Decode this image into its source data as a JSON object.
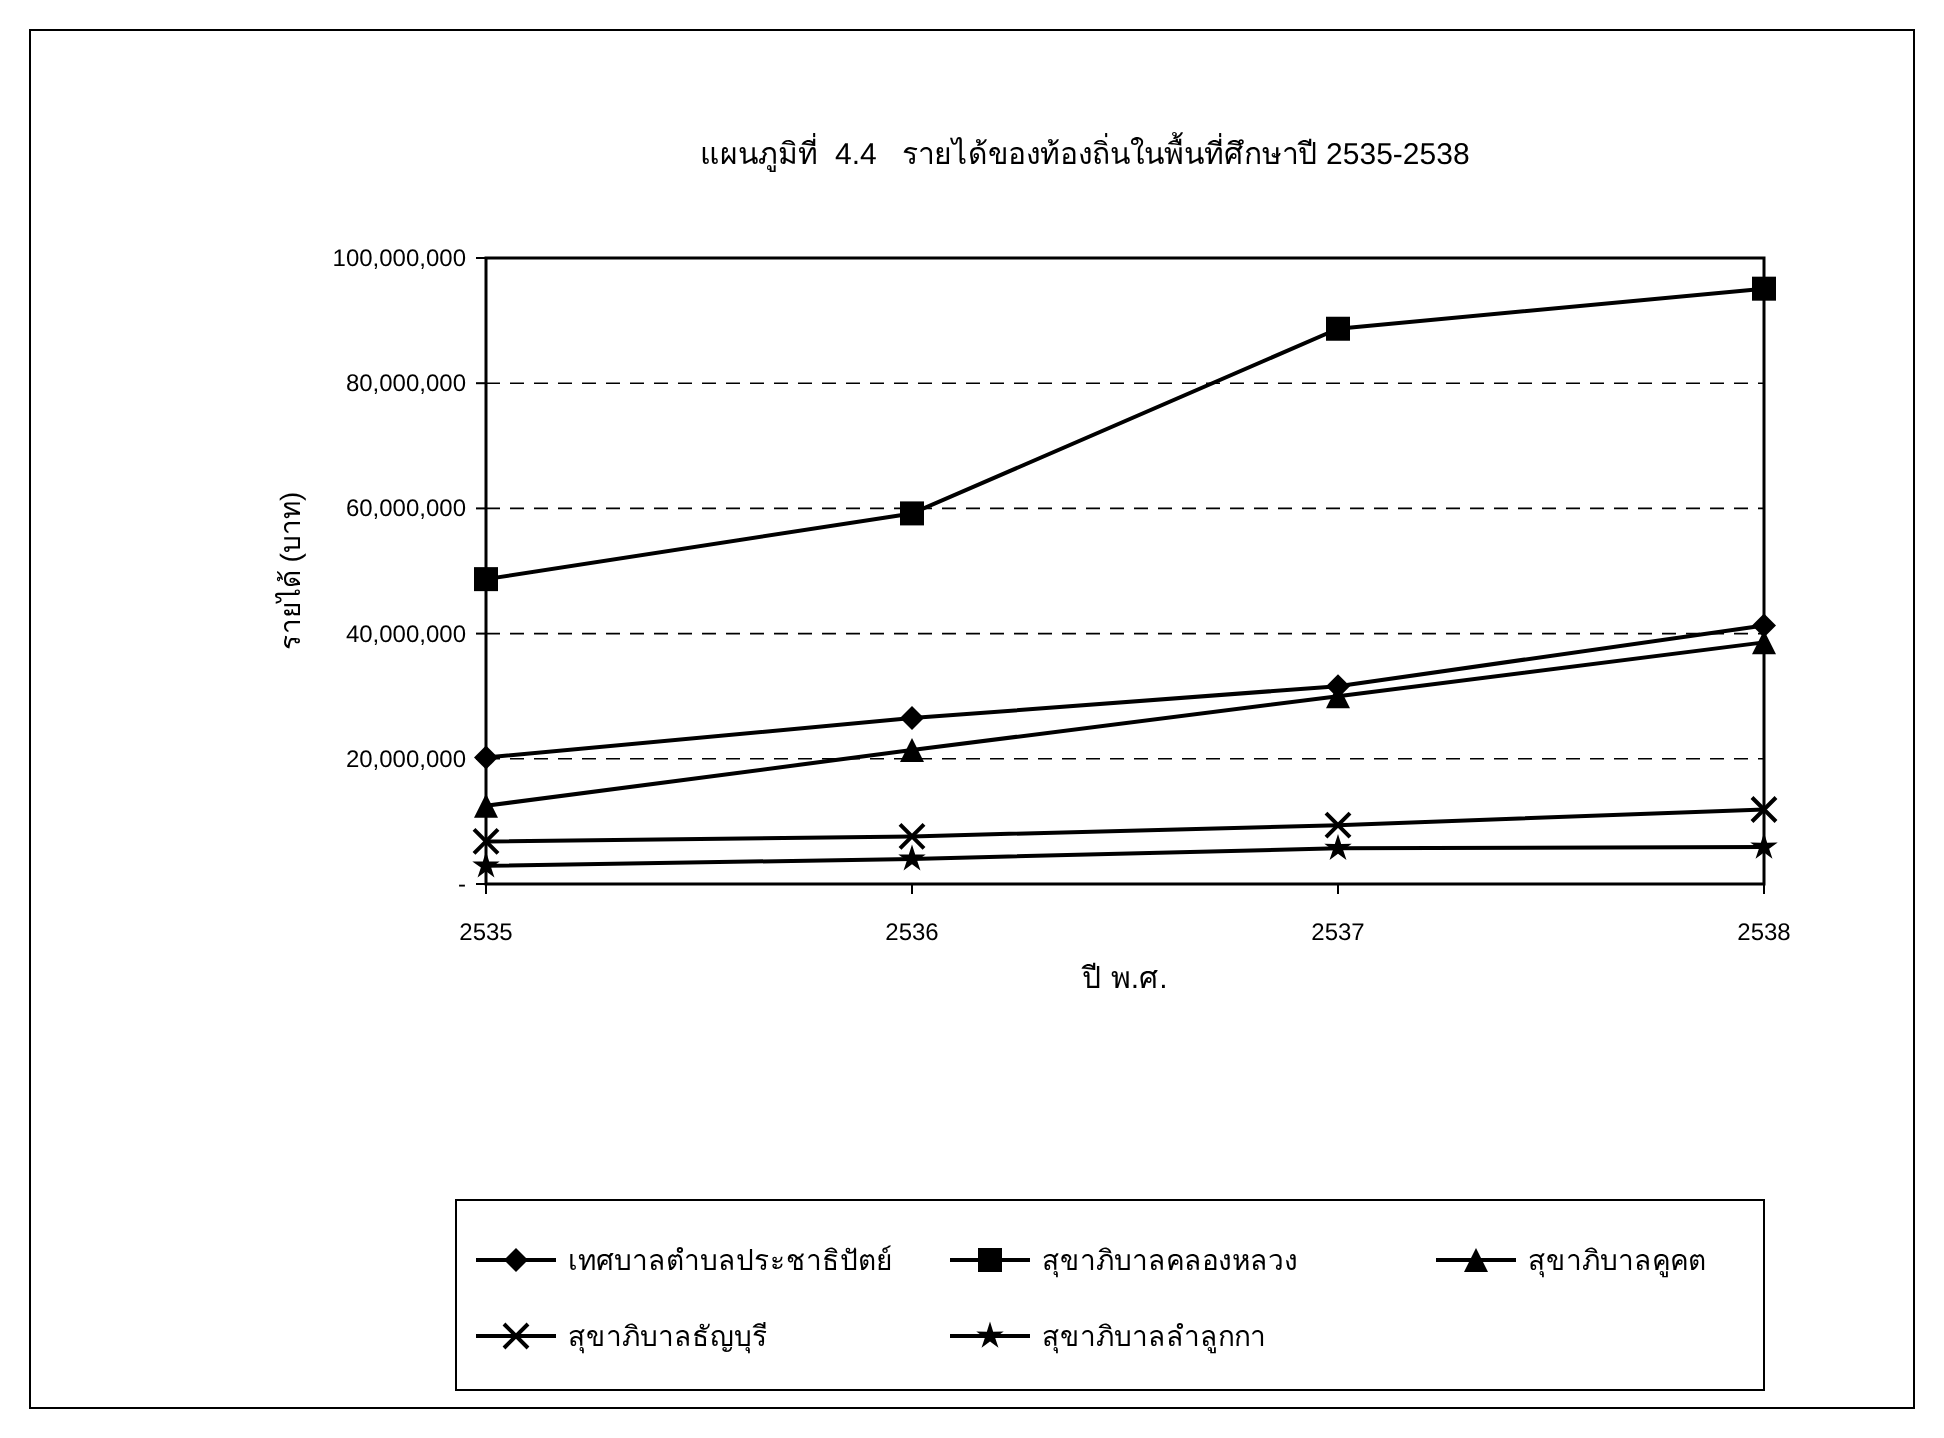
{
  "chart_data": {
    "type": "line",
    "title": "แผนภูมิที่  4.4   รายได้ของท้องถิ่นในพื้นที่ศึกษาปี 2535-2538",
    "xlabel": "ปี พ.ศ.",
    "ylabel": "รายได้ (บาท)",
    "categories": [
      "2535",
      "2536",
      "2537",
      "2538"
    ],
    "series": [
      {
        "name": "เทศบาลตำบลประชาธิปัตย์",
        "color": "#000000",
        "marker": "diamond",
        "values": [
          20200000,
          26500000,
          31600000,
          41300000
        ]
      },
      {
        "name": "สุขาภิบาลคลองหลวง",
        "color": "#000000",
        "marker": "square",
        "values": [
          48700000,
          59200000,
          88700000,
          95100000
        ]
      },
      {
        "name": "สุขาภิบาลคูคต",
        "color": "#000000",
        "marker": "triangle",
        "values": [
          12500000,
          21400000,
          30000000,
          38600000
        ]
      },
      {
        "name": "สุขาภิบาลธัญบุรี",
        "color": "#000000",
        "marker": "cross",
        "values": [
          6800000,
          7600000,
          9400000,
          11900000
        ]
      },
      {
        "name": "สุขาภิบาลลำลูกกา",
        "color": "#000000",
        "marker": "star",
        "values": [
          2900000,
          4000000,
          5700000,
          5900000
        ]
      }
    ],
    "ylim": [
      0,
      100000000
    ],
    "yticks": [
      {
        "value": 0,
        "label": "-"
      },
      {
        "value": 20000000,
        "label": "20,000,000"
      },
      {
        "value": 40000000,
        "label": "40,000,000"
      },
      {
        "value": 60000000,
        "label": "60,000,000"
      },
      {
        "value": 80000000,
        "label": "80,000,000"
      },
      {
        "value": 100000000,
        "label": "100,000,000"
      }
    ],
    "grid": "y",
    "legend": "bottom",
    "line_style": "solid"
  }
}
